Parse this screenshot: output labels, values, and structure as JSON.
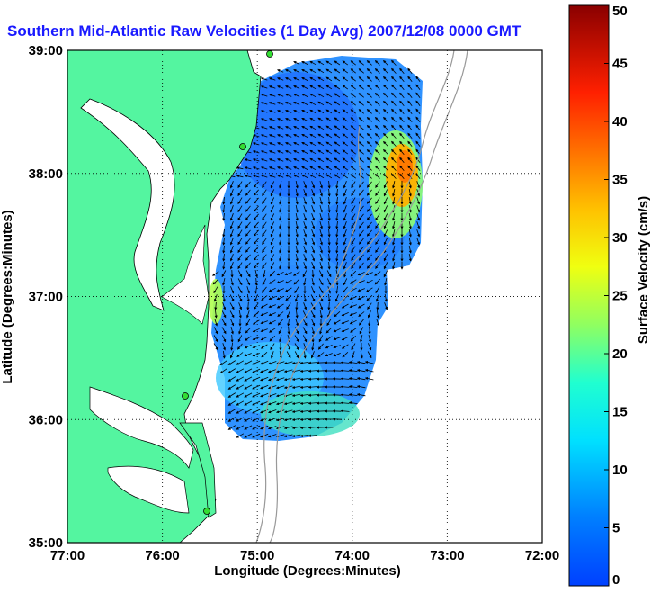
{
  "chart_data": {
    "type": "heatmap",
    "title": "Southern Mid-Atlantic Raw Velocities (1 Day Avg) 2007/12/08 0000 GMT",
    "xlabel": "Longitude (Degrees:Minutes)",
    "ylabel": "Latitude (Degrees:Minutes)",
    "x_ticks": [
      "77:00",
      "76:00",
      "75:00",
      "74:00",
      "73:00",
      "72:00"
    ],
    "x_tick_values": [
      -77,
      -76,
      -75,
      -74,
      -73,
      -72
    ],
    "y_ticks": [
      "39:00",
      "38:00",
      "37:00",
      "36:00",
      "35:00"
    ],
    "y_tick_values": [
      39,
      38,
      37,
      36,
      35
    ],
    "xlim": [
      -77,
      -72
    ],
    "ylim": [
      35,
      39
    ],
    "grid": true,
    "colorbar": {
      "label": "Surface Velocity (cm/s)",
      "range": [
        0,
        50
      ],
      "ticks": [
        "0",
        "5",
        "10",
        "15",
        "20",
        "25",
        "30",
        "35",
        "40",
        "45",
        "50"
      ],
      "tick_values": [
        0,
        5,
        10,
        15,
        20,
        25,
        30,
        35,
        40,
        45,
        50
      ],
      "colormap": "jet"
    },
    "regions": [
      {
        "lon": -74.5,
        "lat": 38.5,
        "speed": 6
      },
      {
        "lon": -73.5,
        "lat": 38.0,
        "speed": 32
      },
      {
        "lon": -74.6,
        "lat": 37.5,
        "speed": 8
      },
      {
        "lon": -73.8,
        "lat": 37.5,
        "speed": 14
      },
      {
        "lon": -75.0,
        "lat": 37.0,
        "speed": 9
      },
      {
        "lon": -75.5,
        "lat": 37.0,
        "speed": 21
      },
      {
        "lon": -74.7,
        "lat": 36.5,
        "speed": 10
      },
      {
        "lon": -75.0,
        "lat": 36.2,
        "speed": 18
      },
      {
        "lon": -74.3,
        "lat": 36.1,
        "speed": 20
      }
    ],
    "colors": {
      "land": "#54f5a0",
      "ocean": "#ffffff",
      "title": "#1a1aff",
      "coastline": "#000000",
      "bathymetry": "#999999",
      "station": "#33dd33"
    }
  }
}
